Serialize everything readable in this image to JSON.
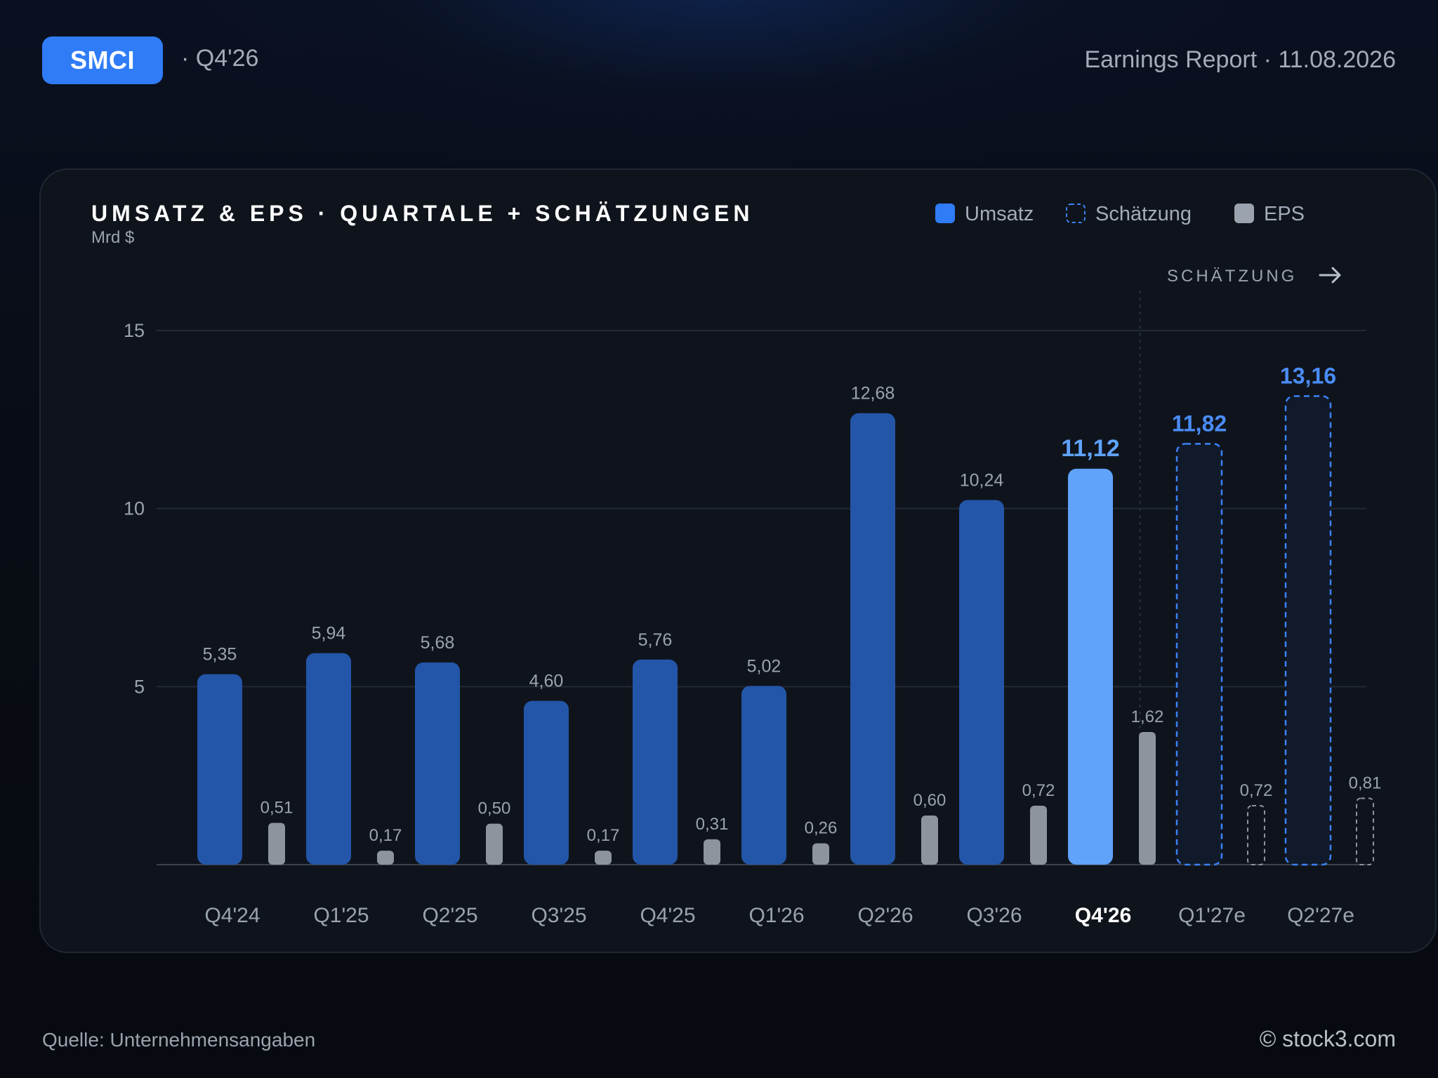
{
  "header": {
    "ticker": "SMCI",
    "period": "· Q4'26",
    "report": "Earnings Report · 11.08.2026"
  },
  "colors": {
    "revenue": "#2356a8",
    "revenue_current": "#5fa3fb",
    "estimate_stroke": "#3b82f6",
    "estimate_fill": "#111a2b",
    "estimate_label": "#4a8cf7",
    "eps": "#8d949c",
    "eps_estimate_stroke": "#8d949c"
  },
  "chart_data": {
    "type": "bar",
    "title": "UMSATZ & EPS · QUARTALE + SCHÄTZUNGEN",
    "unit_label": "Mrd $",
    "estimate_marker": "SCHÄTZUNG",
    "legend": {
      "position": "top-right",
      "items": [
        {
          "key": "revenue",
          "label": "Umsatz",
          "style": "solid"
        },
        {
          "key": "estimate",
          "label": "Schätzung",
          "style": "dashed"
        },
        {
          "key": "eps",
          "label": "EPS",
          "style": "solid"
        }
      ]
    },
    "ylim": [
      0,
      15
    ],
    "yticks": [
      5,
      10,
      15
    ],
    "grid": true,
    "categories": [
      "Q4'24",
      "Q1'25",
      "Q2'25",
      "Q3'25",
      "Q4'25",
      "Q1'26",
      "Q2'26",
      "Q3'26",
      "Q4'26",
      "Q1'27e",
      "Q2'27e"
    ],
    "current_index": 8,
    "estimate_from_index": 9,
    "series": [
      {
        "key": "revenue",
        "name": "Umsatz",
        "values": [
          5.35,
          5.94,
          5.68,
          4.6,
          5.76,
          5.02,
          12.68,
          10.24,
          11.12,
          11.82,
          13.16
        ],
        "labels": [
          "5,35",
          "5,94",
          "5,68",
          "4,60",
          "5,76",
          "5,02",
          "12,68",
          "10,24",
          "11,12",
          "11,82",
          "13,16"
        ]
      },
      {
        "key": "eps",
        "name": "EPS",
        "values": [
          0.51,
          0.17,
          0.5,
          0.17,
          0.31,
          0.26,
          0.6,
          0.72,
          1.62,
          0.72,
          0.81
        ],
        "labels": [
          "0,51",
          "0,17",
          "0,50",
          "0,17",
          "0,31",
          "0,26",
          "0,60",
          "0,72",
          "1,62",
          "0,72",
          "0,81"
        ]
      }
    ]
  },
  "footer": {
    "source": "Quelle: Unternehmensangaben",
    "brand": "© stock3.com"
  }
}
